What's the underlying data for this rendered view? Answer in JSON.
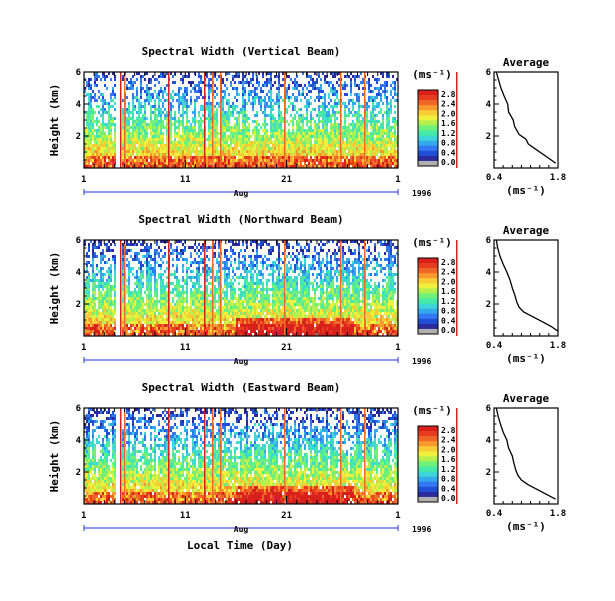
{
  "panels": [
    {
      "title": "Spectral Width (Vertical Beam)",
      "avg_profile": [
        [
          1.75,
          0.3
        ],
        [
          1.6,
          0.6
        ],
        [
          1.45,
          0.9
        ],
        [
          1.3,
          1.2
        ],
        [
          1.15,
          1.5
        ],
        [
          1.1,
          1.8
        ],
        [
          0.95,
          2.1
        ],
        [
          0.85,
          2.6
        ],
        [
          0.82,
          3.0
        ],
        [
          0.72,
          3.5
        ],
        [
          0.7,
          4.0
        ],
        [
          0.62,
          4.5
        ],
        [
          0.55,
          5.0
        ],
        [
          0.5,
          5.5
        ],
        [
          0.45,
          6.0
        ]
      ]
    },
    {
      "title": "Spectral Width (Northward Beam)",
      "avg_profile": [
        [
          1.8,
          0.3
        ],
        [
          1.65,
          0.6
        ],
        [
          1.45,
          0.9
        ],
        [
          1.25,
          1.2
        ],
        [
          1.05,
          1.5
        ],
        [
          0.95,
          1.8
        ],
        [
          0.9,
          2.1
        ],
        [
          0.85,
          2.6
        ],
        [
          0.8,
          3.0
        ],
        [
          0.75,
          3.5
        ],
        [
          0.68,
          4.0
        ],
        [
          0.6,
          4.5
        ],
        [
          0.53,
          5.0
        ],
        [
          0.48,
          5.5
        ],
        [
          0.45,
          6.0
        ]
      ]
    },
    {
      "title": "Spectral Width (Eastward Beam)",
      "avg_profile": [
        [
          1.75,
          0.3
        ],
        [
          1.55,
          0.6
        ],
        [
          1.35,
          0.9
        ],
        [
          1.15,
          1.2
        ],
        [
          1.0,
          1.5
        ],
        [
          0.92,
          1.8
        ],
        [
          0.88,
          2.1
        ],
        [
          0.83,
          2.6
        ],
        [
          0.8,
          3.0
        ],
        [
          0.72,
          3.5
        ],
        [
          0.68,
          4.0
        ],
        [
          0.6,
          4.5
        ],
        [
          0.54,
          5.0
        ],
        [
          0.49,
          5.5
        ],
        [
          0.45,
          6.0
        ]
      ]
    }
  ],
  "ylabel": "Height (km)",
  "y_ticks": [
    "2",
    "4",
    "6"
  ],
  "x_ticks": [
    "1",
    "11",
    "21",
    "1"
  ],
  "month_label": "Aug",
  "year_label": "1996",
  "xlabel": "Local Time (Day)",
  "colorbar": {
    "unit": "(ms⁻¹)",
    "labels": [
      "2.8",
      "2.4",
      "2.0",
      "1.6",
      "1.2",
      "0.8",
      "0.4",
      "0.0"
    ],
    "colors": [
      "#b0b0b0",
      "#2a2a9a",
      "#1f4fd8",
      "#2f78f0",
      "#35a8ec",
      "#3ed7d8",
      "#45e8a8",
      "#6ff07a",
      "#b5f050",
      "#eef03a",
      "#f8cc34",
      "#f89a30",
      "#f06828",
      "#e83c20",
      "#d8201c"
    ]
  },
  "average": {
    "title": "Average",
    "y_ticks": [
      "2",
      "4",
      "6"
    ],
    "x_ticks": [
      "0.4",
      "1.8"
    ],
    "unit": "(ms⁻¹)"
  },
  "chart_data": [
    {
      "type": "heatmap",
      "title": "Spectral Width (Vertical Beam)",
      "xlabel": "Aug",
      "ylabel": "Height (km)",
      "x_ticks": [
        "1",
        "11",
        "21",
        "1"
      ],
      "ylim": [
        0,
        6
      ],
      "colorbar_range": [
        0.0,
        2.8
      ],
      "colorbar_unit": "ms-1",
      "year": "1996"
    },
    {
      "type": "line",
      "title": "Average",
      "xlabel": "(ms-1)",
      "xlim": [
        0.4,
        1.8
      ],
      "ylim": [
        0,
        6
      ],
      "x": [
        1.75,
        1.6,
        1.45,
        1.3,
        1.15,
        1.1,
        0.95,
        0.85,
        0.82,
        0.72,
        0.7,
        0.62,
        0.55,
        0.5,
        0.45
      ],
      "y": [
        0.3,
        0.6,
        0.9,
        1.2,
        1.5,
        1.8,
        2.1,
        2.6,
        3.0,
        3.5,
        4.0,
        4.5,
        5.0,
        5.5,
        6.0
      ]
    },
    {
      "type": "heatmap",
      "title": "Spectral Width (Northward Beam)",
      "xlabel": "Aug",
      "ylabel": "Height (km)",
      "x_ticks": [
        "1",
        "11",
        "21",
        "1"
      ],
      "ylim": [
        0,
        6
      ],
      "colorbar_range": [
        0.0,
        2.8
      ],
      "colorbar_unit": "ms-1",
      "year": "1996"
    },
    {
      "type": "line",
      "title": "Average",
      "xlabel": "(ms-1)",
      "xlim": [
        0.4,
        1.8
      ],
      "ylim": [
        0,
        6
      ],
      "x": [
        1.8,
        1.65,
        1.45,
        1.25,
        1.05,
        0.95,
        0.9,
        0.85,
        0.8,
        0.75,
        0.68,
        0.6,
        0.53,
        0.48,
        0.45
      ],
      "y": [
        0.3,
        0.6,
        0.9,
        1.2,
        1.5,
        1.8,
        2.1,
        2.6,
        3.0,
        3.5,
        4.0,
        4.5,
        5.0,
        5.5,
        6.0
      ]
    },
    {
      "type": "heatmap",
      "title": "Spectral Width (Eastward Beam)",
      "xlabel": "Local Time (Day)",
      "ylabel": "Height (km)",
      "x_ticks": [
        "1",
        "11",
        "21",
        "1"
      ],
      "ylim": [
        0,
        6
      ],
      "colorbar_range": [
        0.0,
        2.8
      ],
      "colorbar_unit": "ms-1",
      "year": "1996"
    },
    {
      "type": "line",
      "title": "Average",
      "xlabel": "(ms-1)",
      "xlim": [
        0.4,
        1.8
      ],
      "ylim": [
        0,
        6
      ],
      "x": [
        1.75,
        1.55,
        1.35,
        1.15,
        1.0,
        0.92,
        0.88,
        0.83,
        0.8,
        0.72,
        0.68,
        0.6,
        0.54,
        0.49,
        0.45
      ],
      "y": [
        0.3,
        0.6,
        0.9,
        1.2,
        1.5,
        1.8,
        2.1,
        2.6,
        3.0,
        3.5,
        4.0,
        4.5,
        5.0,
        5.5,
        6.0
      ]
    }
  ]
}
